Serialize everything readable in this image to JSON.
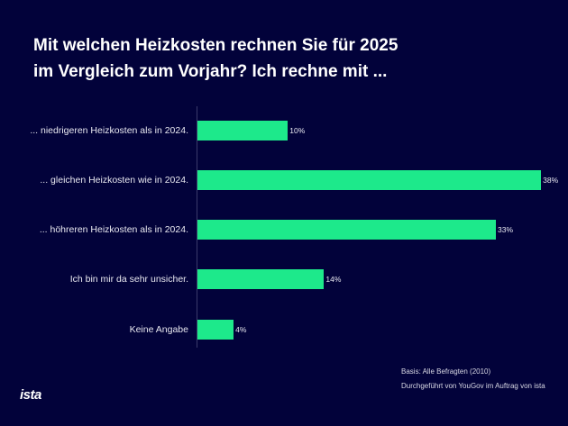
{
  "title_lines": [
    "Mit welchen Heizkosten rechnen Sie für 2025",
    "im Vergleich zum Vorjahr? Ich rechne mit ..."
  ],
  "chart_data": {
    "type": "bar",
    "orientation": "horizontal",
    "categories": [
      "... niedrigeren Heizkosten als in 2024.",
      "... gleichen Heizkosten wie in 2024.",
      "... höhreren Heizkosten als in 2024.",
      "Ich bin mir da sehr unsicher.",
      "Keine Angabe"
    ],
    "values": [
      10,
      38,
      33,
      14,
      4
    ],
    "value_labels": [
      "10%",
      "38%",
      "33%",
      "14%",
      "4%"
    ],
    "xlim": [
      0,
      38
    ],
    "grid": false,
    "bar_color": "#1de98b",
    "background": "#02023a"
  },
  "footnotes": [
    "Basis: Alle Befragten (2010)",
    "Durchgeführt von YouGov im Auftrag von ista"
  ],
  "logo": "ista"
}
